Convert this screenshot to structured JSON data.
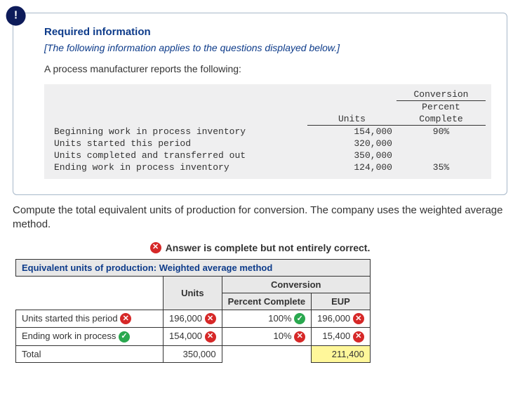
{
  "badge": "!",
  "required": {
    "title": "Required information",
    "subtitle": "[The following information applies to the questions displayed below.]",
    "intro": "A process manufacturer reports the following:",
    "table": {
      "headers": {
        "units": "Units",
        "conv": "Conversion",
        "pct": "Percent",
        "complete": "Complete"
      },
      "rows": [
        {
          "label": "Beginning work in process inventory",
          "units": "154,000",
          "pct": "90%"
        },
        {
          "label": "Units started this period",
          "units": "320,000",
          "pct": ""
        },
        {
          "label": "Units completed and transferred out",
          "units": "350,000",
          "pct": ""
        },
        {
          "label": "Ending work in process inventory",
          "units": "124,000",
          "pct": "35%"
        }
      ]
    }
  },
  "question": "Compute the total equivalent units of production for conversion. The company uses the weighted average method.",
  "feedback": "Answer is complete but not entirely correct.",
  "answer": {
    "title": "Equivalent units of production: Weighted average method",
    "colhead": {
      "units": "Units",
      "conv": "Conversion",
      "pct": "Percent Complete",
      "eup": "EUP"
    },
    "rows": [
      {
        "label": "Units started this period",
        "lmark": "x",
        "units": "196,000",
        "umark": "x",
        "pct": "100%",
        "pmark": "v",
        "eup": "196,000",
        "emark": "x"
      },
      {
        "label": "Ending work in process",
        "lmark": "v",
        "units": "154,000",
        "umark": "x",
        "pct": "10%",
        "pmark": "x",
        "eup": "15,400",
        "emark": "x"
      }
    ],
    "total": {
      "label": "Total",
      "units": "350,000",
      "eup": "211,400"
    }
  },
  "colors": {
    "card_border": "#a7b8c9",
    "badge_bg": "#0d1b5a",
    "heading": "#0d3b8a",
    "mono_bg": "#efeff0",
    "table_header_bg": "#e8e8e8",
    "wrong": "#d62828",
    "right": "#2aa84f",
    "highlight": "#fff79a"
  }
}
